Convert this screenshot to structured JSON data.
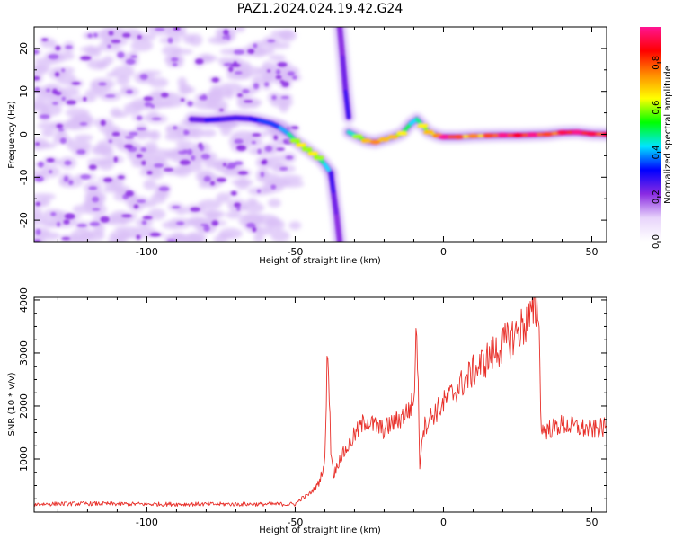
{
  "title": "PAZ1.2024.024.19.42.G24",
  "colorbar": {
    "label": "Normalized spectral amplitude",
    "ticks": [
      "0.0",
      "0.2",
      "0.4",
      "0.6",
      "0.8"
    ],
    "tick_values": [
      0.0,
      0.2,
      0.4,
      0.6,
      0.8
    ],
    "range": [
      0,
      0.96
    ],
    "colormap": [
      "#ffffff",
      "#e8d4fb",
      "#8a2be2",
      "#0000ff",
      "#00e5ff",
      "#00ff00",
      "#ffff00",
      "#ff8c00",
      "#ff0000",
      "#ff1493"
    ]
  },
  "chart_data": [
    {
      "type": "heatmap",
      "xlabel": "Height of straight line (km)",
      "ylabel": "Frequency (Hz)",
      "xlim": [
        -138,
        55
      ],
      "ylim": [
        -25,
        25
      ],
      "xticks": [
        -100,
        -50,
        0,
        50
      ],
      "xtick_labels": [
        "-100",
        "-50",
        "0",
        "50"
      ],
      "yticks": [
        -20,
        -10,
        0,
        10,
        20
      ],
      "ytick_labels": [
        "-20",
        "-10",
        "0",
        "10",
        "20"
      ],
      "ridge_segments": [
        {
          "x": [
            -85,
            -80,
            -75,
            -70,
            -65,
            -62,
            -58,
            -55,
            -52,
            -50,
            -48,
            -46,
            -44,
            -42,
            -40,
            -38
          ],
          "y": [
            3.5,
            3.3,
            3.5,
            3.8,
            3.6,
            3.2,
            2.5,
            1.5,
            0,
            -1.5,
            -2.5,
            -3.5,
            -4.5,
            -5.5,
            -7,
            -9
          ],
          "amplitude": [
            0.2,
            0.3,
            0.3,
            0.25,
            0.3,
            0.35,
            0.35,
            0.35,
            0.45,
            0.5,
            0.55,
            0.5,
            0.55,
            0.5,
            0.45,
            0.4
          ]
        },
        {
          "x": [
            -38,
            -37,
            -36,
            -35
          ],
          "y": [
            -9,
            -14,
            -19,
            -25
          ],
          "amplitude": [
            0.3,
            0.25,
            0.22,
            0.2
          ]
        },
        {
          "x": [
            -35,
            -34,
            -33,
            -32
          ],
          "y": [
            25,
            18,
            10,
            4
          ],
          "amplitude": [
            0.2,
            0.22,
            0.25,
            0.3
          ]
        },
        {
          "x": [
            -32,
            -29,
            -26,
            -23,
            -20,
            -17,
            -14,
            -11,
            -9,
            -7,
            -5,
            -2,
            0,
            5,
            10,
            15,
            20,
            25,
            30,
            35,
            40,
            45,
            50,
            55
          ],
          "y": [
            0.5,
            -0.5,
            -1.5,
            -1.8,
            -1.2,
            -0.6,
            0.2,
            2.5,
            3.5,
            2,
            0.5,
            -0.3,
            -0.6,
            -0.6,
            -0.4,
            -0.3,
            -0.2,
            -0.2,
            -0.1,
            0,
            0.4,
            0.5,
            0.1,
            0
          ],
          "amplitude": [
            0.4,
            0.5,
            0.6,
            0.65,
            0.6,
            0.6,
            0.55,
            0.45,
            0.4,
            0.55,
            0.6,
            0.65,
            0.9,
            0.7,
            0.65,
            0.7,
            0.85,
            0.75,
            0.85,
            0.7,
            0.8,
            0.85,
            0.8,
            0.75
          ]
        }
      ],
      "noise_region_x": [
        -138,
        -50
      ]
    },
    {
      "type": "line",
      "xlabel": "Height of straight line (km)",
      "ylabel": "SNR (10 * v/v)",
      "xlim": [
        -138,
        55
      ],
      "ylim": [
        0,
        4050
      ],
      "xticks": [
        -100,
        -50,
        0,
        50
      ],
      "xtick_labels": [
        "-100",
        "-50",
        "0",
        "50"
      ],
      "yticks": [
        1000,
        2000,
        3000,
        4000
      ],
      "ytick_labels": [
        "1000",
        "2000",
        "3000",
        "4000"
      ],
      "color": "#e8302a",
      "series": [
        {
          "x": [
            -138,
            -120,
            -100,
            -80,
            -60,
            -50,
            -48,
            -45,
            -42,
            -40,
            -39,
            -38,
            -37,
            -35,
            -32,
            -30,
            -28,
            -26,
            -24,
            -22,
            -20,
            -18,
            -15,
            -12,
            -10,
            -9,
            -8,
            -7,
            -5,
            0,
            5,
            10,
            15,
            20,
            25,
            30,
            32,
            33,
            35,
            40,
            45,
            50,
            55
          ],
          "y": [
            150,
            160,
            150,
            150,
            150,
            150,
            250,
            350,
            550,
            950,
            3250,
            1200,
            700,
            1000,
            1250,
            1450,
            1600,
            1750,
            1650,
            1600,
            1550,
            1650,
            1750,
            1900,
            2100,
            3600,
            900,
            1550,
            1750,
            2050,
            2350,
            2650,
            2900,
            3150,
            3400,
            3700,
            3900,
            1550,
            1550,
            1650,
            1600,
            1550,
            1600
          ]
        }
      ]
    }
  ]
}
